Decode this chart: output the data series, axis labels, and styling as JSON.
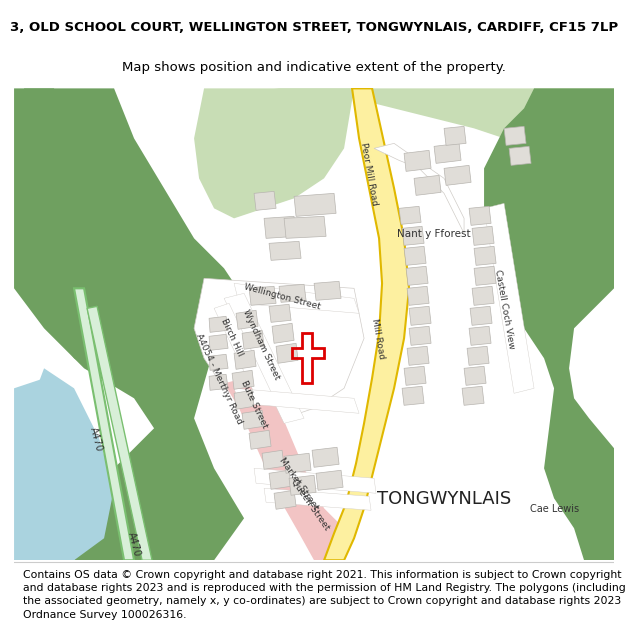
{
  "title_line1": "3, OLD SCHOOL COURT, WELLINGTON STREET, TONGWYNLAIS, CARDIFF, CF15 7LP",
  "title_line2": "Map shows position and indicative extent of the property.",
  "footer_text": "Contains OS data © Crown copyright and database right 2021. This information is subject to Crown copyright and database rights 2023 and is reproduced with the permission of HM Land Registry. The polygons (including the associated geometry, namely x, y co-ordinates) are subject to Crown copyright and database rights 2023 Ordnance Survey 100026316.",
  "background_color": "#ffffff",
  "map_bg_color": "#f7f5f2",
  "title_fontsize": 9.5,
  "subtitle_fontsize": 9.5,
  "footer_fontsize": 7.8,
  "title_color": "#000000",
  "fig_width": 6.0,
  "fig_height": 6.25,
  "green_dark": "#6fa060",
  "green_light": "#c8ddb5",
  "blue_water": "#aad3df",
  "road_yellow_fill": "#fdf0a0",
  "road_yellow_edge": "#e0b800",
  "road_pink": "#f2c4c4",
  "road_green_fill": "#d8efd8",
  "road_green_edge": "#7abf70",
  "building_fill": "#e0ddd8",
  "building_edge": "#b8b5b0",
  "road_line": "#d0ccc8",
  "label_color": "#333333",
  "red_poly": "#dd0000"
}
